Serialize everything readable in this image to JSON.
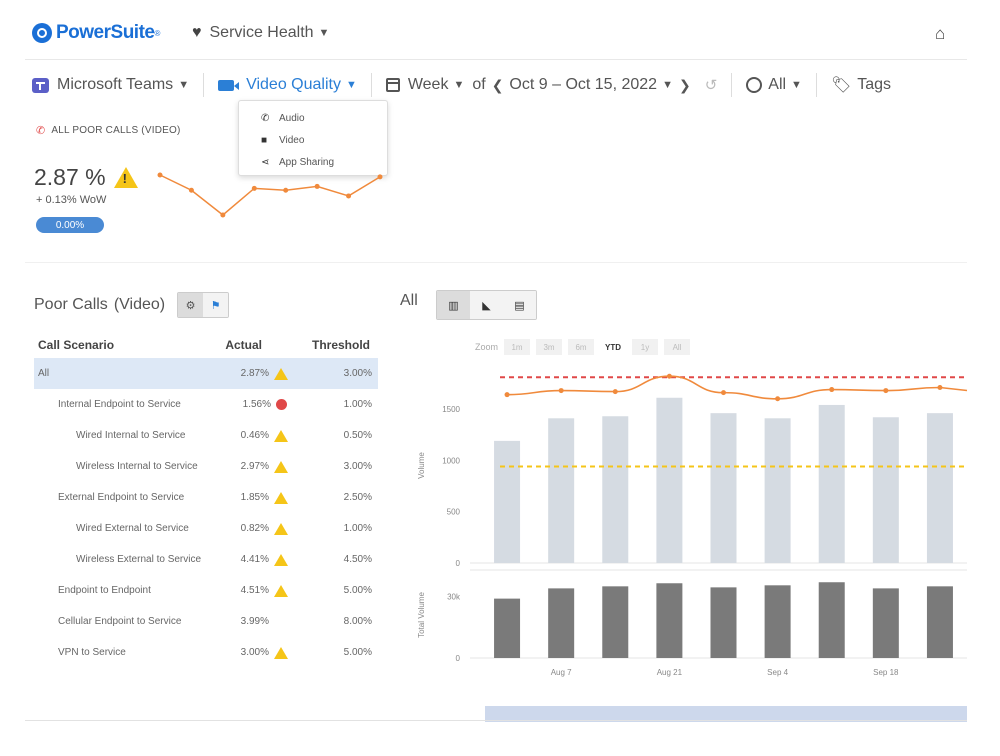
{
  "header": {
    "logo_text": "PowerSuite",
    "logo_tm": "®",
    "service": "Service Health",
    "icons": {
      "logo": "powersuite-logo-icon",
      "service": "heart-icon",
      "home": "home-icon"
    }
  },
  "filters": {
    "app": "Microsoft Teams",
    "quality": "Video Quality",
    "period": "Week",
    "of": "of",
    "range": "Oct 9 – Oct 15, 2022",
    "region": "All",
    "tags": "Tags"
  },
  "quality_menu": {
    "items": [
      {
        "label": "Audio",
        "icon": "phone-icon"
      },
      {
        "label": "Video",
        "icon": "video-camera-icon"
      },
      {
        "label": "App Sharing",
        "icon": "share-icon"
      }
    ]
  },
  "kpi": {
    "title": "ALL POOR CALLS (VIDEO)",
    "value": "2.87 %",
    "delta": "+ 0.13% WoW",
    "badge": "0.00%",
    "sparkline": [
      3.02,
      2.94,
      2.81,
      2.95,
      2.94,
      2.96,
      2.91,
      3.01
    ]
  },
  "left_panel": {
    "title": "Poor Calls",
    "subtitle": "(Video)",
    "columns": [
      "Call Scenario",
      "Actual",
      "Threshold"
    ],
    "rows": [
      {
        "scenario": "All",
        "actual": "2.87%",
        "threshold": "3.00%",
        "status": "warn",
        "level": 0
      },
      {
        "scenario": "Internal Endpoint to Service",
        "actual": "1.56%",
        "threshold": "1.00%",
        "status": "error",
        "level": 1
      },
      {
        "scenario": "Wired Internal to Service",
        "actual": "0.46%",
        "threshold": "0.50%",
        "status": "warn",
        "level": 2
      },
      {
        "scenario": "Wireless Internal to Service",
        "actual": "2.97%",
        "threshold": "3.00%",
        "status": "warn",
        "level": 2
      },
      {
        "scenario": "External Endpoint to Service",
        "actual": "1.85%",
        "threshold": "2.50%",
        "status": "warn",
        "level": 1
      },
      {
        "scenario": "Wired External to Service",
        "actual": "0.82%",
        "threshold": "1.00%",
        "status": "warn",
        "level": 2
      },
      {
        "scenario": "Wireless External to Service",
        "actual": "4.41%",
        "threshold": "4.50%",
        "status": "warn",
        "level": 2
      },
      {
        "scenario": "Endpoint to Endpoint",
        "actual": "4.51%",
        "threshold": "5.00%",
        "status": "warn",
        "level": 1
      },
      {
        "scenario": "Cellular Endpoint to Service",
        "actual": "3.99%",
        "threshold": "8.00%",
        "status": "none",
        "level": 1
      },
      {
        "scenario": "VPN to Service",
        "actual": "3.00%",
        "threshold": "5.00%",
        "status": "warn",
        "level": 1
      }
    ]
  },
  "right_panel": {
    "label": "All",
    "zoom_label": "Zoom",
    "zoom_options": [
      "1m",
      "3m",
      "6m",
      "YTD",
      "1y",
      "All"
    ],
    "zoom_selected": "YTD"
  },
  "chart_data": {
    "type": "bar",
    "x": [
      "",
      "Aug 7",
      "",
      "Aug 21",
      "",
      "Sep 4",
      "",
      "Sep 18",
      ""
    ],
    "x_tick_labels": [
      "Aug 7",
      "Aug 21",
      "Sep 4",
      "Sep 18"
    ],
    "volume": [
      1190,
      1410,
      1430,
      1610,
      1460,
      1410,
      1540,
      1420,
      1460
    ],
    "total_volume": [
      29000,
      34000,
      35000,
      36500,
      34500,
      35500,
      37000,
      34000,
      35000
    ],
    "poor_rate_line": [
      1640,
      1680,
      1670,
      1820,
      1660,
      1600,
      1690,
      1680,
      1710
    ],
    "threshold_red": 1810,
    "threshold_yellow": 940,
    "ylabel": "Volume",
    "ylabel2": "Total Volume",
    "y_ticks": [
      "0",
      "500",
      "1000",
      "1500"
    ],
    "y2_ticks": [
      "0",
      "30k"
    ],
    "ylim": [
      0,
      1900
    ],
    "y2lim": [
      0,
      42000
    ],
    "colors": {
      "bar": "#d5dbe2",
      "bar2": "#7a7a7a",
      "line": "#f08a3c",
      "red": "#e04848",
      "yellow": "#f5c518"
    }
  }
}
